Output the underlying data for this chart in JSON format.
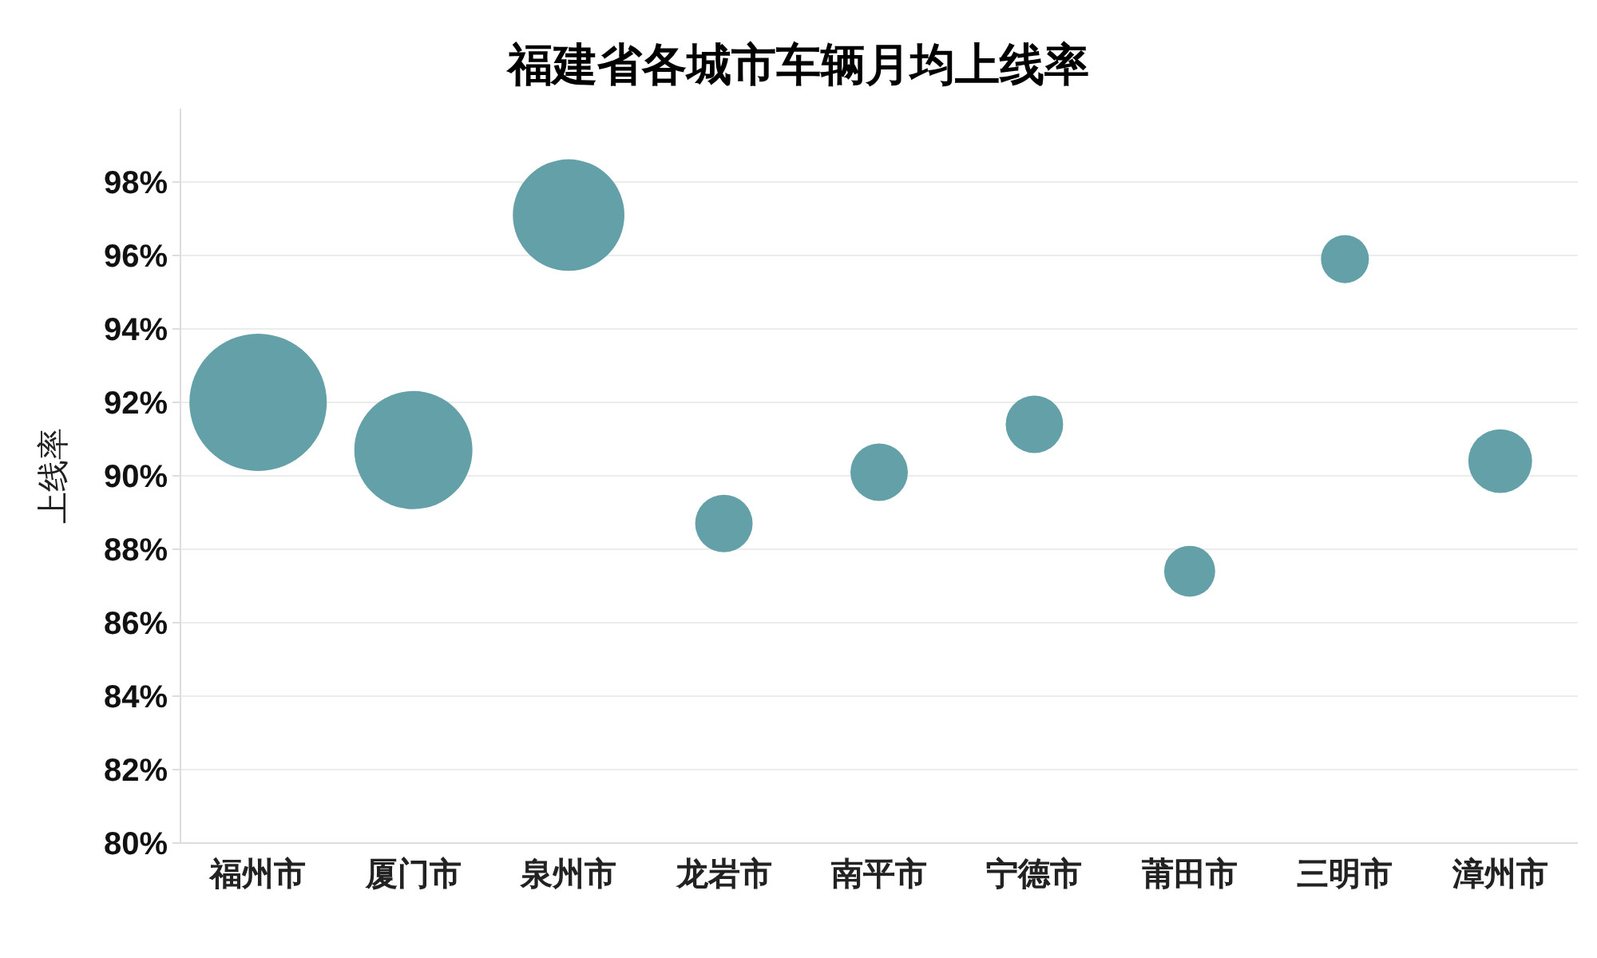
{
  "chart_data": {
    "type": "bubble",
    "title": "福建省各城市车辆月均上线率",
    "ylabel": "上线率",
    "categories": [
      "福州市",
      "厦门市",
      "泉州市",
      "龙岩市",
      "南平市",
      "宁德市",
      "莆田市",
      "三明市",
      "漳州市"
    ],
    "values": [
      92.0,
      90.7,
      97.1,
      88.7,
      90.1,
      91.4,
      87.4,
      95.9,
      90.4
    ],
    "sizes": [
      1,
      0.74,
      0.66,
      0.175,
      0.175,
      0.175,
      0.138,
      0.122,
      0.216
    ],
    "color": "#64a0a8",
    "ylim": [
      80,
      100
    ],
    "yticks": [
      {
        "value": 80,
        "label": "80%"
      },
      {
        "value": 82,
        "label": "82%"
      },
      {
        "value": 84,
        "label": "84%"
      },
      {
        "value": 86,
        "label": "86%"
      },
      {
        "value": 88,
        "label": "88%"
      },
      {
        "value": 90,
        "label": "90%"
      },
      {
        "value": 92,
        "label": "92%"
      },
      {
        "value": 94,
        "label": "94%"
      },
      {
        "value": 96,
        "label": "96%"
      },
      {
        "value": 98,
        "label": "98%"
      }
    ],
    "grid": "y"
  }
}
